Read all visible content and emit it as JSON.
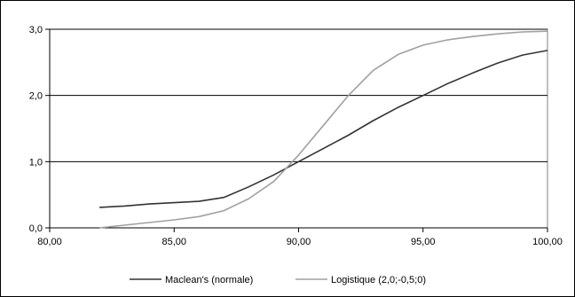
{
  "chart_data": {
    "type": "line",
    "title": "",
    "xlabel": "",
    "ylabel": "",
    "xlim": [
      80,
      100
    ],
    "ylim": [
      0,
      3
    ],
    "x_ticks": [
      "80,00",
      "85,00",
      "90,00",
      "95,00",
      "100,00"
    ],
    "y_ticks": [
      "0,0",
      "1,0",
      "2,0",
      "3,0"
    ],
    "grid": "horizontal",
    "legend_position": "bottom",
    "series": [
      {
        "name": "Maclean's (normale)",
        "color": "#333333",
        "points": [
          [
            82,
            0.31
          ],
          [
            83,
            0.33
          ],
          [
            84,
            0.36
          ],
          [
            85,
            0.38
          ],
          [
            86,
            0.4
          ],
          [
            87,
            0.46
          ],
          [
            88,
            0.62
          ],
          [
            89,
            0.8
          ],
          [
            90,
            1.0
          ],
          [
            91,
            1.2
          ],
          [
            92,
            1.4
          ],
          [
            93,
            1.62
          ],
          [
            94,
            1.82
          ],
          [
            95,
            2.0
          ],
          [
            96,
            2.18
          ],
          [
            97,
            2.34
          ],
          [
            98,
            2.49
          ],
          [
            99,
            2.61
          ],
          [
            100,
            2.68
          ]
        ]
      },
      {
        "name": "Logistique (2,0;-0,5;0)",
        "color": "#a0a0a0",
        "points": [
          [
            82,
            0.0
          ],
          [
            83,
            0.04
          ],
          [
            84,
            0.08
          ],
          [
            85,
            0.12
          ],
          [
            86,
            0.17
          ],
          [
            87,
            0.26
          ],
          [
            88,
            0.44
          ],
          [
            89,
            0.7
          ],
          [
            90,
            1.1
          ],
          [
            91,
            1.55
          ],
          [
            92,
            2.0
          ],
          [
            93,
            2.38
          ],
          [
            94,
            2.62
          ],
          [
            95,
            2.76
          ],
          [
            96,
            2.84
          ],
          [
            97,
            2.89
          ],
          [
            98,
            2.93
          ],
          [
            99,
            2.96
          ],
          [
            100,
            2.97
          ]
        ]
      }
    ]
  }
}
